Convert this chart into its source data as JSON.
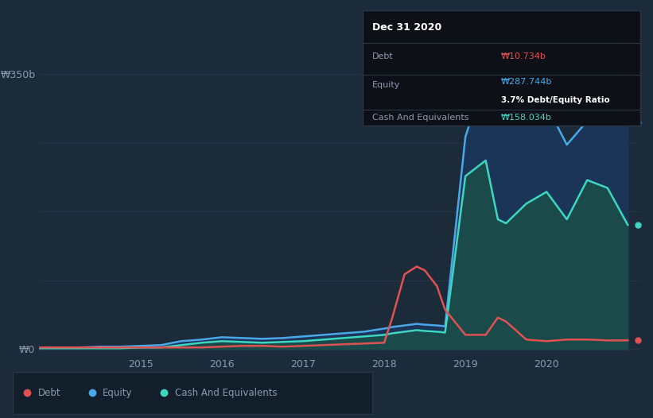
{
  "background_color": "#1c2b3a",
  "title": "Dec 31 2020",
  "ylabel_350": "₩350b",
  "ylabel_0": "₩0",
  "debt_color": "#e05252",
  "equity_color": "#4aa8e8",
  "cash_color": "#3dd6c0",
  "equity_fill_color": "#1a3558",
  "cash_fill_color": "#1a4a4a",
  "tooltip": {
    "title": "Dec 31 2020",
    "debt_label": "Debt",
    "debt_value": "₩10.734b",
    "equity_label": "Equity",
    "equity_value": "₩287.744b",
    "ratio_label": "3.7% Debt/Equity Ratio",
    "cash_label": "Cash And Equivalents",
    "cash_value": "₩158.034b"
  },
  "time": [
    2013.75,
    2014.0,
    2014.25,
    2014.5,
    2014.75,
    2015.0,
    2015.25,
    2015.5,
    2015.75,
    2016.0,
    2016.25,
    2016.5,
    2016.75,
    2017.0,
    2017.25,
    2017.5,
    2017.75,
    2018.0,
    2018.1,
    2018.25,
    2018.4,
    2018.5,
    2018.65,
    2018.75,
    2019.0,
    2019.25,
    2019.4,
    2019.5,
    2019.75,
    2020.0,
    2020.25,
    2020.5,
    2020.75,
    2021.0
  ],
  "debt": [
    2,
    2,
    2,
    2,
    2,
    2,
    2,
    2,
    2,
    3,
    4,
    4,
    3,
    4,
    5,
    6,
    7,
    8,
    40,
    95,
    105,
    100,
    80,
    50,
    18,
    18,
    40,
    35,
    12,
    10,
    12,
    12,
    11,
    11
  ],
  "equity": [
    2,
    2,
    2,
    3,
    3,
    4,
    5,
    10,
    12,
    15,
    14,
    13,
    14,
    16,
    18,
    20,
    22,
    26,
    28,
    30,
    32,
    31,
    30,
    29,
    270,
    350,
    300,
    290,
    310,
    310,
    260,
    290,
    295,
    288
  ],
  "cash": [
    1,
    1,
    1,
    1,
    1,
    2,
    2,
    5,
    8,
    10,
    9,
    8,
    9,
    10,
    12,
    14,
    16,
    18,
    20,
    22,
    24,
    23,
    22,
    21,
    220,
    240,
    165,
    160,
    185,
    200,
    165,
    215,
    205,
    158
  ]
}
